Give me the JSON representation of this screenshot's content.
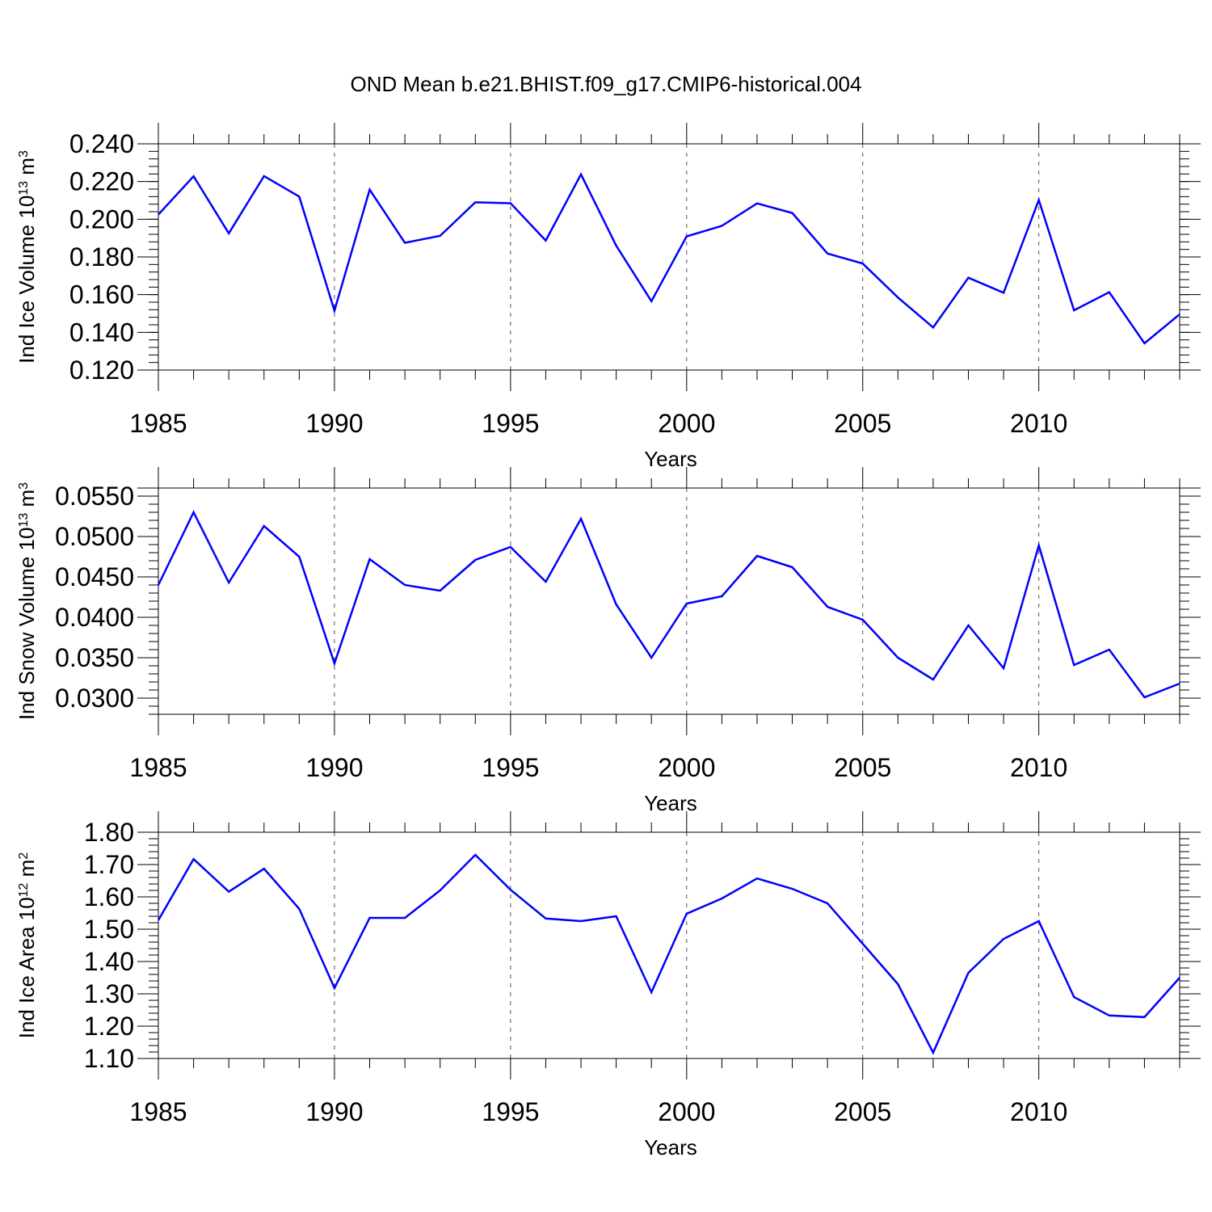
{
  "figure": {
    "title": "OND Mean b.e21.BHIST.f09_g17.CMIP6-historical.004",
    "line_color": "#0000ff"
  },
  "chart_data": [
    {
      "type": "line",
      "ylabel_parts": [
        "Ind Ice Volume 10",
        "13",
        " m",
        "3"
      ],
      "xlabel": "Years",
      "xlim": [
        1985,
        2014
      ],
      "ylim": [
        0.12,
        0.24
      ],
      "x_ticks": [
        1985,
        1990,
        1995,
        2000,
        2005,
        2010
      ],
      "x_tick_labels": [
        "1985",
        "1990",
        "1995",
        "2000",
        "2005",
        "2010"
      ],
      "y_ticks": [
        0.12,
        0.14,
        0.16,
        0.18,
        0.2,
        0.22,
        0.24
      ],
      "y_tick_labels": [
        "0.120",
        "0.140",
        "0.160",
        "0.180",
        "0.200",
        "0.220",
        "0.240"
      ],
      "y_minor_step": 0.004,
      "series": [
        {
          "name": "Ind Ice Volume",
          "x": [
            1985,
            1986,
            1987,
            1988,
            1989,
            1990,
            1991,
            1992,
            1993,
            1994,
            1995,
            1996,
            1997,
            1998,
            1999,
            2000,
            2001,
            2002,
            2003,
            2004,
            2005,
            2006,
            2007,
            2008,
            2009,
            2010,
            2011,
            2012,
            2013,
            2014
          ],
          "values": [
            0.2025,
            0.2228,
            0.1925,
            0.2229,
            0.212,
            0.1515,
            0.2157,
            0.1875,
            0.1912,
            0.209,
            0.2085,
            0.1887,
            0.2238,
            0.186,
            0.1565,
            0.1909,
            0.1965,
            0.2084,
            0.2033,
            0.1818,
            0.1765,
            0.1585,
            0.1426,
            0.169,
            0.161,
            0.2102,
            0.1517,
            0.1613,
            0.1342,
            0.1496
          ]
        }
      ]
    },
    {
      "type": "line",
      "ylabel_parts": [
        "Ind Snow Volume 10",
        "13",
        " m",
        "3"
      ],
      "xlabel": "Years",
      "xlim": [
        1985,
        2014
      ],
      "ylim": [
        0.028,
        0.056
      ],
      "x_ticks": [
        1985,
        1990,
        1995,
        2000,
        2005,
        2010
      ],
      "x_tick_labels": [
        "1985",
        "1990",
        "1995",
        "2000",
        "2005",
        "2010"
      ],
      "y_ticks": [
        0.03,
        0.035,
        0.04,
        0.045,
        0.05,
        0.055
      ],
      "y_tick_labels": [
        "0.0300",
        "0.0350",
        "0.0400",
        "0.0450",
        "0.0500",
        "0.0550"
      ],
      "y_minor_step": 0.001,
      "series": [
        {
          "name": "Ind Snow Volume",
          "x": [
            1985,
            1986,
            1987,
            1988,
            1989,
            1990,
            1991,
            1992,
            1993,
            1994,
            1995,
            1996,
            1997,
            1998,
            1999,
            2000,
            2001,
            2002,
            2003,
            2004,
            2005,
            2006,
            2007,
            2008,
            2009,
            2010,
            2011,
            2012,
            2013,
            2014
          ],
          "values": [
            0.044,
            0.053,
            0.0443,
            0.0513,
            0.0475,
            0.0343,
            0.0472,
            0.044,
            0.0433,
            0.0471,
            0.0487,
            0.0444,
            0.0522,
            0.0416,
            0.035,
            0.0417,
            0.0426,
            0.0476,
            0.0462,
            0.0413,
            0.0397,
            0.035,
            0.0323,
            0.039,
            0.0337,
            0.0489,
            0.0341,
            0.036,
            0.0301,
            0.0318
          ]
        }
      ]
    },
    {
      "type": "line",
      "ylabel_parts": [
        "Ind Ice Area 10",
        "12",
        " m",
        "2"
      ],
      "xlabel": "Years",
      "xlim": [
        1985,
        2014
      ],
      "ylim": [
        1.1,
        1.8
      ],
      "x_ticks": [
        1985,
        1990,
        1995,
        2000,
        2005,
        2010
      ],
      "x_tick_labels": [
        "1985",
        "1990",
        "1995",
        "2000",
        "2005",
        "2010"
      ],
      "y_ticks": [
        1.1,
        1.2,
        1.3,
        1.4,
        1.5,
        1.6,
        1.7,
        1.8
      ],
      "y_tick_labels": [
        "1.10",
        "1.20",
        "1.30",
        "1.40",
        "1.50",
        "1.60",
        "1.70",
        "1.80"
      ],
      "y_minor_step": 0.02,
      "series": [
        {
          "name": "Ind Ice Area",
          "x": [
            1985,
            1986,
            1987,
            1988,
            1989,
            1990,
            1991,
            1992,
            1993,
            1994,
            1995,
            1996,
            1997,
            1998,
            1999,
            2000,
            2001,
            2002,
            2003,
            2004,
            2005,
            2006,
            2007,
            2008,
            2009,
            2010,
            2011,
            2012,
            2013,
            2014
          ],
          "values": [
            1.528,
            1.717,
            1.616,
            1.687,
            1.563,
            1.318,
            1.535,
            1.535,
            1.62,
            1.73,
            1.622,
            1.533,
            1.525,
            1.54,
            1.305,
            1.548,
            1.595,
            1.657,
            1.625,
            1.58,
            1.455,
            1.33,
            1.118,
            1.365,
            1.47,
            1.525,
            1.29,
            1.233,
            1.228,
            1.35
          ]
        }
      ]
    }
  ]
}
